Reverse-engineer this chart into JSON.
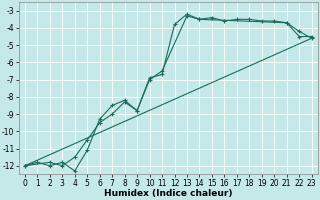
{
  "xlabel": "Humidex (Indice chaleur)",
  "xlim": [
    -0.5,
    23.5
  ],
  "ylim": [
    -12.5,
    -2.5
  ],
  "yticks": [
    -3,
    -4,
    -5,
    -6,
    -7,
    -8,
    -9,
    -10,
    -11,
    -12
  ],
  "xticks": [
    0,
    1,
    2,
    3,
    4,
    5,
    6,
    7,
    8,
    9,
    10,
    11,
    12,
    13,
    14,
    15,
    16,
    17,
    18,
    19,
    20,
    21,
    22,
    23
  ],
  "bg_color": "#c5e8e8",
  "grid_color": "#ffffff",
  "line_color": "#1a6b5a",
  "line1_x": [
    0,
    1,
    2,
    3,
    4,
    5,
    6,
    7,
    8,
    9,
    10,
    11,
    12,
    13,
    14,
    15,
    16,
    17,
    18,
    19,
    20,
    21,
    22,
    23
  ],
  "line1_y": [
    -12.0,
    -11.8,
    -12.0,
    -11.8,
    -12.3,
    -11.1,
    -9.3,
    -8.5,
    -8.2,
    -8.8,
    -6.9,
    -6.7,
    -3.8,
    -3.2,
    -3.5,
    -3.4,
    -3.6,
    -3.5,
    -3.5,
    -3.6,
    -3.6,
    -3.7,
    -4.5,
    -4.5
  ],
  "line2_x": [
    0,
    2,
    3,
    4,
    5,
    6,
    7,
    8,
    9,
    10,
    11,
    13,
    14,
    21,
    22,
    23
  ],
  "line2_y": [
    -12.0,
    -11.8,
    -12.0,
    -11.5,
    -10.5,
    -9.5,
    -9.0,
    -8.3,
    -8.8,
    -7.0,
    -6.5,
    -3.3,
    -3.5,
    -3.7,
    -4.2,
    -4.6
  ],
  "line3_x": [
    0,
    23
  ],
  "line3_y": [
    -12.0,
    -4.6
  ],
  "font_color": "#000000",
  "tick_fontsize": 5.5,
  "label_fontsize": 6.5,
  "line_width": 0.8,
  "marker_size": 3.5
}
